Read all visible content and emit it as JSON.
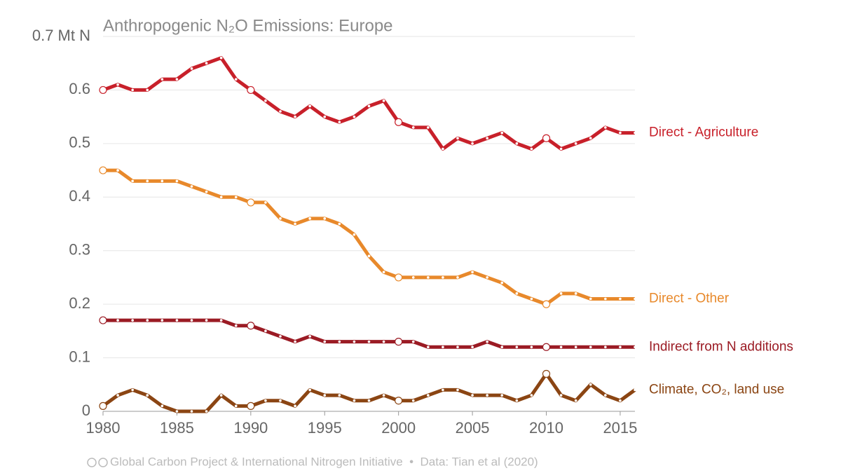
{
  "chart_data": {
    "type": "line",
    "title": "Anthropogenic N₂O Emissions: Europe",
    "x": [
      1980,
      1981,
      1982,
      1983,
      1984,
      1985,
      1986,
      1987,
      1988,
      1989,
      1990,
      1991,
      1992,
      1993,
      1994,
      1995,
      1996,
      1997,
      1998,
      1999,
      2000,
      2001,
      2002,
      2003,
      2004,
      2005,
      2006,
      2007,
      2008,
      2009,
      2010,
      2011,
      2012,
      2013,
      2014,
      2015,
      2016
    ],
    "xlim": [
      1980,
      2016
    ],
    "xticks": [
      1980,
      1985,
      1990,
      1995,
      2000,
      2005,
      2010,
      2015
    ],
    "ylim": [
      0,
      0.7
    ],
    "yticks": [
      0,
      0.1,
      0.2,
      0.3,
      0.4,
      0.5,
      0.6,
      {
        "value": 0.7,
        "label": "0.7 Mt N"
      }
    ],
    "grid": true,
    "series": [
      {
        "name": "Direct - Agriculture",
        "color": "#c8202a",
        "values": [
          0.6,
          0.61,
          0.6,
          0.6,
          0.62,
          0.62,
          0.64,
          0.65,
          0.66,
          0.62,
          0.6,
          0.58,
          0.56,
          0.55,
          0.57,
          0.55,
          0.54,
          0.55,
          0.57,
          0.58,
          0.54,
          0.53,
          0.53,
          0.49,
          0.51,
          0.5,
          0.51,
          0.52,
          0.5,
          0.49,
          0.51,
          0.49,
          0.5,
          0.51,
          0.53,
          0.52,
          0.52
        ]
      },
      {
        "name": "Direct - Other",
        "color": "#e8892b",
        "values": [
          0.45,
          0.45,
          0.43,
          0.43,
          0.43,
          0.43,
          0.42,
          0.41,
          0.4,
          0.4,
          0.39,
          0.39,
          0.36,
          0.35,
          0.36,
          0.36,
          0.35,
          0.33,
          0.29,
          0.26,
          0.25,
          0.25,
          0.25,
          0.25,
          0.25,
          0.26,
          0.25,
          0.24,
          0.22,
          0.21,
          0.2,
          0.22,
          0.22,
          0.21,
          0.21,
          0.21,
          0.21
        ]
      },
      {
        "name": "Indirect from N additions",
        "color": "#9b1b24",
        "values": [
          0.17,
          0.17,
          0.17,
          0.17,
          0.17,
          0.17,
          0.17,
          0.17,
          0.17,
          0.16,
          0.16,
          0.15,
          0.14,
          0.13,
          0.14,
          0.13,
          0.13,
          0.13,
          0.13,
          0.13,
          0.13,
          0.13,
          0.12,
          0.12,
          0.12,
          0.12,
          0.13,
          0.12,
          0.12,
          0.12,
          0.12,
          0.12,
          0.12,
          0.12,
          0.12,
          0.12,
          0.12
        ]
      },
      {
        "name": "Climate, CO₂, land use",
        "color": "#8b4513",
        "values": [
          0.01,
          0.03,
          0.04,
          0.03,
          0.01,
          0,
          0,
          0,
          0.03,
          0.01,
          0.01,
          0.02,
          0.02,
          0.01,
          0.04,
          0.03,
          0.03,
          0.02,
          0.02,
          0.03,
          0.02,
          0.02,
          0.03,
          0.04,
          0.04,
          0.03,
          0.03,
          0.03,
          0.02,
          0.03,
          0.07,
          0.03,
          0.02,
          0.05,
          0.03,
          0.02,
          0.04
        ]
      }
    ],
    "footer": "Global Carbon Project & International Nitrogen Initiative  •  Data: Tian et al (2020)"
  }
}
